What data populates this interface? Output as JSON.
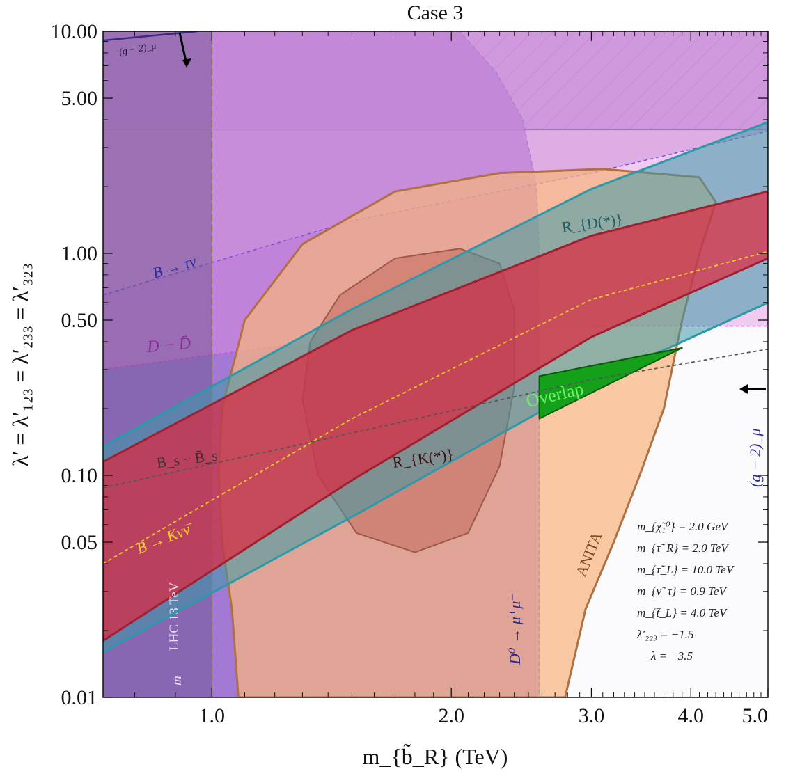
{
  "chart_data": {
    "type": "area",
    "title": "Case 3",
    "xlabel": "m_{b̃_R} (TeV)",
    "ylabel": "λ′ = λ′₁₂₃ = λ′₂₃₃ = λ′₃₂₃",
    "xscale": "log",
    "yscale": "log",
    "xlim": [
      0.73,
      5.0
    ],
    "ylim": [
      0.01,
      10.0
    ],
    "x_ticks": [
      {
        "value": 1.0,
        "label": "1.0"
      },
      {
        "value": 2.0,
        "label": "2.0"
      },
      {
        "value": 3.0,
        "label": "3.0"
      },
      {
        "value": 4.0,
        "label": "4.0"
      },
      {
        "value": 5.0,
        "label": "5.0"
      }
    ],
    "y_ticks": [
      {
        "value": 0.01,
        "label": "0.01"
      },
      {
        "value": 0.05,
        "label": "0.05"
      },
      {
        "value": 0.1,
        "label": "0.10"
      },
      {
        "value": 0.5,
        "label": "0.50"
      },
      {
        "value": 1.0,
        "label": "1.00"
      },
      {
        "value": 5.0,
        "label": "5.00"
      },
      {
        "value": 10.0,
        "label": "10.00"
      }
    ],
    "regions": [
      {
        "name": "Perturbativity (hatched)",
        "label": "",
        "color": "#9a6fd0",
        "points": [
          [
            0.73,
            3.6
          ],
          [
            5.0,
            3.6
          ],
          [
            5.0,
            10.0
          ],
          [
            0.73,
            10.0
          ]
        ]
      },
      {
        "name": "D0 → μ+μ−",
        "label": "D⁰ → μ⁺μ⁻",
        "color": "#8c55c8",
        "points": [
          [
            0.73,
            10.0
          ],
          [
            2.05,
            10.0
          ],
          [
            2.28,
            6.5
          ],
          [
            2.46,
            4.0
          ],
          [
            2.56,
            2.0
          ],
          [
            2.58,
            1.0
          ],
          [
            2.58,
            0.01
          ],
          [
            0.73,
            0.01
          ]
        ]
      },
      {
        "name": "B → τν",
        "label": "B → τν",
        "color": "#b99ad6",
        "points": [
          [
            0.73,
            0.65
          ],
          [
            1.5,
            1.4
          ],
          [
            3.0,
            2.3
          ],
          [
            5.0,
            3.55
          ],
          [
            5.0,
            10.0
          ],
          [
            0.73,
            10.0
          ]
        ]
      },
      {
        "name": "D − D̄",
        "label": "D − D̄",
        "color": "#e48fe0",
        "points": [
          [
            0.73,
            0.3
          ],
          [
            1.2,
            0.38
          ],
          [
            2.0,
            0.44
          ],
          [
            3.0,
            0.47
          ],
          [
            5.0,
            0.47
          ],
          [
            5.0,
            10.0
          ],
          [
            0.73,
            10.0
          ]
        ]
      },
      {
        "name": "LHC 13 TeV",
        "label": "LHC 13 TeV",
        "color": "#5a4a7a",
        "points": [
          [
            0.73,
            0.01
          ],
          [
            1.0,
            0.01
          ],
          [
            1.0,
            10.0
          ],
          [
            0.73,
            10.0
          ]
        ]
      },
      {
        "name": "ANITA",
        "label": "ANITA",
        "color": "#f6b47e",
        "points": [
          [
            1.08,
            0.01
          ],
          [
            1.06,
            0.025
          ],
          [
            1.03,
            0.05
          ],
          [
            1.02,
            0.1
          ],
          [
            1.03,
            0.2
          ],
          [
            1.1,
            0.5
          ],
          [
            1.3,
            1.1
          ],
          [
            1.7,
            1.9
          ],
          [
            2.3,
            2.3
          ],
          [
            3.1,
            2.4
          ],
          [
            4.1,
            2.2
          ],
          [
            4.3,
            1.7
          ],
          [
            4.1,
            1.0
          ],
          [
            3.9,
            0.5
          ],
          [
            3.7,
            0.2
          ],
          [
            3.45,
            0.1
          ],
          [
            3.2,
            0.05
          ],
          [
            2.95,
            0.025
          ],
          [
            2.78,
            0.01
          ]
        ]
      },
      {
        "name": "R_K(*) inner",
        "label": "",
        "color": "#c26a5e",
        "points": [
          [
            1.3,
            0.22
          ],
          [
            1.36,
            0.1
          ],
          [
            1.52,
            0.055
          ],
          [
            1.8,
            0.045
          ],
          [
            2.1,
            0.055
          ],
          [
            2.3,
            0.11
          ],
          [
            2.4,
            0.25
          ],
          [
            2.4,
            0.55
          ],
          [
            2.3,
            0.9
          ],
          [
            2.05,
            1.05
          ],
          [
            1.7,
            0.95
          ],
          [
            1.45,
            0.65
          ],
          [
            1.33,
            0.4
          ]
        ]
      },
      {
        "name": "R_D(*) band",
        "label": "R_{D(*)}",
        "color": "#3a9aa8",
        "points": [
          [
            0.73,
            0.135
          ],
          [
            1.5,
            0.56
          ],
          [
            3.0,
            1.95
          ],
          [
            5.0,
            3.9
          ],
          [
            5.0,
            0.6
          ],
          [
            3.0,
            0.26
          ],
          [
            1.5,
            0.065
          ],
          [
            0.73,
            0.016
          ]
        ]
      },
      {
        "name": "R_K(*) band",
        "label": "R_{K(*)}",
        "color": "#e4223a",
        "points": [
          [
            0.73,
            0.115
          ],
          [
            1.5,
            0.45
          ],
          [
            3.0,
            1.2
          ],
          [
            5.0,
            1.9
          ],
          [
            5.0,
            0.95
          ],
          [
            3.0,
            0.42
          ],
          [
            1.5,
            0.095
          ],
          [
            0.73,
            0.018
          ]
        ]
      },
      {
        "name": "Overlap",
        "label": "Overlap",
        "color": "#15a01a",
        "points": [
          [
            2.58,
            0.28
          ],
          [
            3.9,
            0.375
          ],
          [
            2.58,
            0.18
          ]
        ]
      }
    ],
    "lines": [
      {
        "name": "B → Kνν̄",
        "label": "B → Kνν̄",
        "color": "#f0d020",
        "style": "dashed",
        "points": [
          [
            0.73,
            0.04
          ],
          [
            1.5,
            0.18
          ],
          [
            3.0,
            0.62
          ],
          [
            5.0,
            1.02
          ]
        ]
      },
      {
        "name": "Bs − B̄s",
        "label": "B_s − B̄_s",
        "color": "#555555",
        "style": "dashed",
        "points": [
          [
            0.73,
            0.088
          ],
          [
            1.5,
            0.155
          ],
          [
            3.0,
            0.27
          ],
          [
            5.0,
            0.37
          ]
        ]
      },
      {
        "name": "(g−2)μ",
        "label": "(g − 2)_μ",
        "color": "#3a2a80",
        "style": "solid",
        "points": [
          [
            0.73,
            9.1
          ],
          [
            0.96,
            10.0
          ]
        ]
      }
    ],
    "annotations": [
      {
        "text": "m_{χ̃₁⁰} = 2.0 GeV"
      },
      {
        "text": "m_{τ̃_R} = 2.0 TeV"
      },
      {
        "text": "m_{τ̃_L} = 10.0 TeV"
      },
      {
        "text": "m_{ν̃_τ} = 0.9 TeV"
      },
      {
        "text": "m_{t̃_L} = 4.0 TeV"
      },
      {
        "text": "λ′₂₂₃ = −1.5"
      },
      {
        "text": "λ = −3.5"
      }
    ],
    "grid": false,
    "legend": "none"
  }
}
